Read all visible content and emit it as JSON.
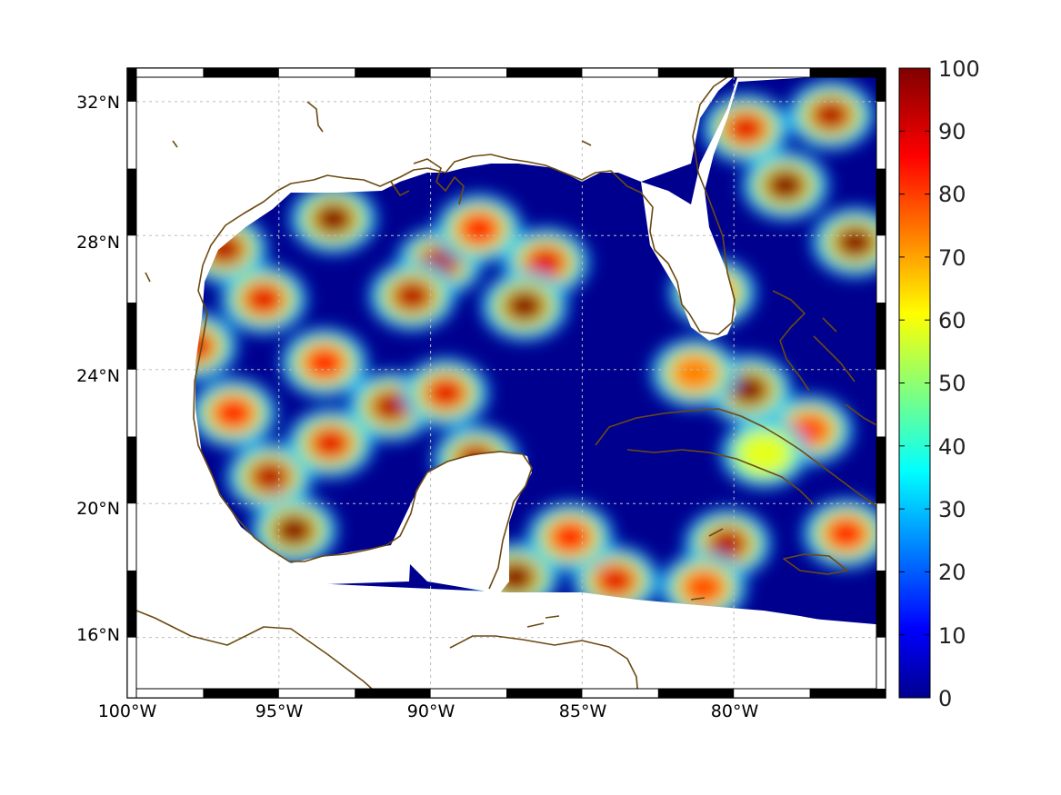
{
  "colors": {
    "coastline": "#6b4a12",
    "land": "#ffffff",
    "colormap": "jet",
    "grid": "#bdbdbd"
  },
  "map": {
    "projection": "cylindrical",
    "lon_range": [
      -100,
      -75
    ],
    "lat_range": [
      14.2,
      33
    ],
    "grid": true,
    "frame_style": "alternating black/white ticks"
  },
  "axes": {
    "x_ticks": [
      {
        "value": -100,
        "label": "100°W"
      },
      {
        "value": -95,
        "label": "95°W"
      },
      {
        "value": -90,
        "label": "90°W"
      },
      {
        "value": -85,
        "label": "85°W"
      },
      {
        "value": -80,
        "label": "80°W"
      }
    ],
    "y_ticks": [
      {
        "value": 32,
        "label": "32°N"
      },
      {
        "value": 28,
        "label": "28°N"
      },
      {
        "value": 24,
        "label": "24°N"
      },
      {
        "value": 20,
        "label": "20°N"
      },
      {
        "value": 16,
        "label": "16°N"
      }
    ]
  },
  "colorbar": {
    "min": 0,
    "max": 100,
    "ticks": [
      "0",
      "10",
      "20",
      "30",
      "40",
      "50",
      "60",
      "70",
      "80",
      "90",
      "100"
    ]
  },
  "chart_data": {
    "type": "heatmap",
    "title": "",
    "xlabel": "",
    "ylabel": "",
    "x_range": [
      -100,
      -75
    ],
    "y_range": [
      14.2,
      33
    ],
    "value_range": [
      0,
      100
    ],
    "description_units": "field value 0-100 over Gulf of Mexico and western Caribbean",
    "hotspots": [
      {
        "lon": -93.2,
        "lat": 28.5,
        "value": 100
      },
      {
        "lon": -96.8,
        "lat": 27.6,
        "value": 95
      },
      {
        "lon": -95.5,
        "lat": 26.1,
        "value": 90
      },
      {
        "lon": -89.7,
        "lat": 27.2,
        "value": 95
      },
      {
        "lon": -88.4,
        "lat": 28.2,
        "value": 85
      },
      {
        "lon": -86.2,
        "lat": 27.2,
        "value": 90
      },
      {
        "lon": -90.6,
        "lat": 26.2,
        "value": 95
      },
      {
        "lon": -86.9,
        "lat": 25.9,
        "value": 100
      },
      {
        "lon": -91.3,
        "lat": 22.9,
        "value": 95
      },
      {
        "lon": -89.5,
        "lat": 23.3,
        "value": 90
      },
      {
        "lon": -93.5,
        "lat": 24.2,
        "value": 85
      },
      {
        "lon": -97.8,
        "lat": 24.7,
        "value": 90
      },
      {
        "lon": -96.5,
        "lat": 22.7,
        "value": 85
      },
      {
        "lon": -95.3,
        "lat": 20.8,
        "value": 95
      },
      {
        "lon": -94.5,
        "lat": 19.2,
        "value": 100
      },
      {
        "lon": -93.3,
        "lat": 21.8,
        "value": 90
      },
      {
        "lon": -88.5,
        "lat": 21.3,
        "value": 95
      },
      {
        "lon": -80.7,
        "lat": 26.3,
        "value": 70
      },
      {
        "lon": -79.5,
        "lat": 23.4,
        "value": 100
      },
      {
        "lon": -77.5,
        "lat": 22.2,
        "value": 80
      },
      {
        "lon": -76.0,
        "lat": 27.8,
        "value": 100
      },
      {
        "lon": -78.3,
        "lat": 29.5,
        "value": 100
      },
      {
        "lon": -79.6,
        "lat": 31.2,
        "value": 90
      },
      {
        "lon": -76.8,
        "lat": 31.6,
        "value": 95
      },
      {
        "lon": -80.2,
        "lat": 18.8,
        "value": 95
      },
      {
        "lon": -76.3,
        "lat": 19.1,
        "value": 85
      },
      {
        "lon": -87.2,
        "lat": 17.8,
        "value": 100
      },
      {
        "lon": -83.9,
        "lat": 17.7,
        "value": 90
      },
      {
        "lon": -85.4,
        "lat": 19.0,
        "value": 85
      },
      {
        "lon": -81.0,
        "lat": 17.5,
        "value": 80
      },
      {
        "lon": -79.0,
        "lat": 21.5,
        "value": 60
      },
      {
        "lon": -81.3,
        "lat": 23.9,
        "value": 75
      }
    ]
  }
}
